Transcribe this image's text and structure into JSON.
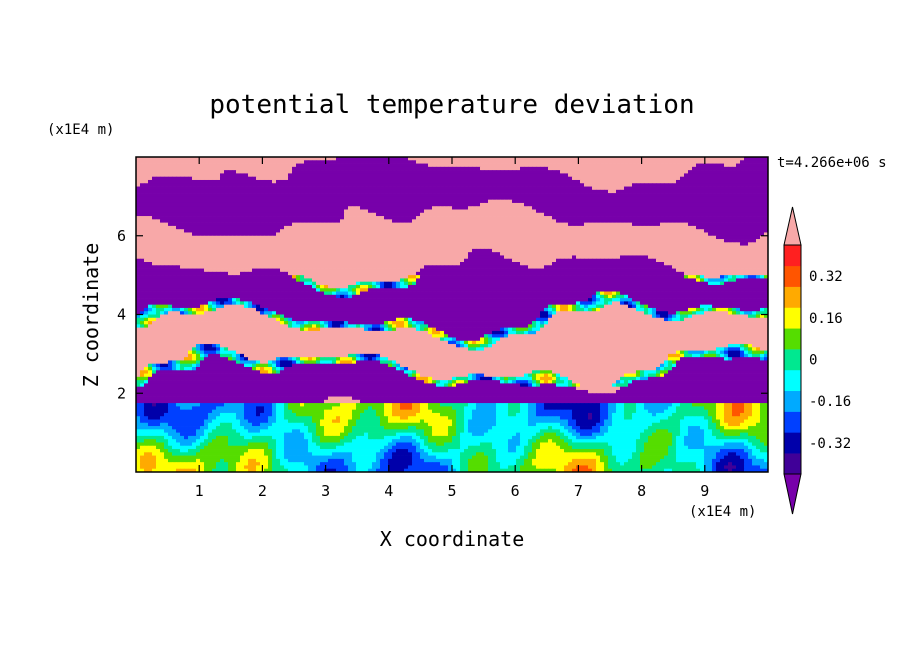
{
  "chart_data": {
    "type": "heatmap",
    "title": "potential temperature deviation",
    "xlabel": "X coordinate",
    "ylabel": "Z coordinate",
    "x_unit": "(x1E4 m)",
    "y_unit": "(x1E4 m)",
    "time_label": "t=4.266e+06 s",
    "xlim": [
      0,
      10
    ],
    "ylim": [
      0,
      8
    ],
    "x_ticks": [
      "1",
      "2",
      "3",
      "4",
      "5",
      "6",
      "7",
      "8",
      "9"
    ],
    "y_ticks": [
      "2",
      "4",
      "6"
    ],
    "colorbar": {
      "levels": [
        -0.48,
        -0.4,
        -0.32,
        -0.24,
        -0.16,
        -0.08,
        0,
        0.08,
        0.16,
        0.24,
        0.32,
        0.4,
        0.48
      ],
      "tick_labels": [
        "0.32",
        "0.16",
        "0",
        "-0.16",
        "-0.32"
      ],
      "colors": [
        "#7700aa",
        "#400098",
        "#0000aa",
        "#0040ff",
        "#00aaff",
        "#00ffff",
        "#00e890",
        "#55dd00",
        "#ffff00",
        "#ffaa00",
        "#ff5500",
        "#ff2020",
        "#f8a8a8"
      ],
      "extend": "both"
    }
  }
}
